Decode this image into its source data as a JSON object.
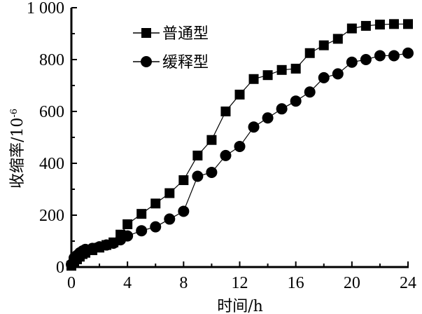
{
  "chart_data": {
    "type": "line",
    "title": "",
    "xlabel": "时间/h",
    "ylabel": "收缩率/10-6",
    "ylabel_main": "收缩率/10",
    "ylabel_sup": "-6",
    "xlim": [
      0,
      24
    ],
    "ylim": [
      0,
      1000
    ],
    "x_ticks": [
      "0",
      "4",
      "8",
      "12",
      "16",
      "20",
      "24"
    ],
    "y_ticks": [
      "0",
      "200",
      "400",
      "600",
      "800",
      "1 000"
    ],
    "grid": false,
    "legend_position": "upper left (inside)",
    "series": [
      {
        "name": "普通型",
        "marker": "square",
        "x": [
          0,
          0.2,
          0.4,
          0.6,
          0.8,
          1,
          1.5,
          2,
          2.5,
          3,
          3.5,
          4,
          5,
          6,
          7,
          8,
          9,
          10,
          11,
          12,
          13,
          14,
          15,
          16,
          17,
          18,
          19,
          20,
          21,
          22,
          23,
          24
        ],
        "values": [
          5,
          20,
          30,
          40,
          50,
          55,
          65,
          75,
          85,
          95,
          125,
          165,
          205,
          245,
          285,
          335,
          430,
          490,
          600,
          665,
          725,
          740,
          760,
          765,
          825,
          855,
          880,
          920,
          930,
          935,
          937,
          937
        ]
      },
      {
        "name": "缓释型",
        "marker": "circle",
        "x": [
          0,
          0.2,
          0.4,
          0.6,
          0.8,
          1,
          1.5,
          2,
          2.5,
          3,
          3.5,
          4,
          5,
          6,
          7,
          8,
          9,
          10,
          11,
          12,
          13,
          14,
          15,
          16,
          17,
          18,
          19,
          20,
          21,
          22,
          23,
          24
        ],
        "values": [
          10,
          35,
          45,
          55,
          62,
          68,
          72,
          78,
          85,
          92,
          105,
          120,
          140,
          155,
          185,
          215,
          350,
          365,
          430,
          465,
          540,
          575,
          610,
          640,
          675,
          730,
          745,
          790,
          800,
          815,
          815,
          825
        ]
      }
    ]
  }
}
